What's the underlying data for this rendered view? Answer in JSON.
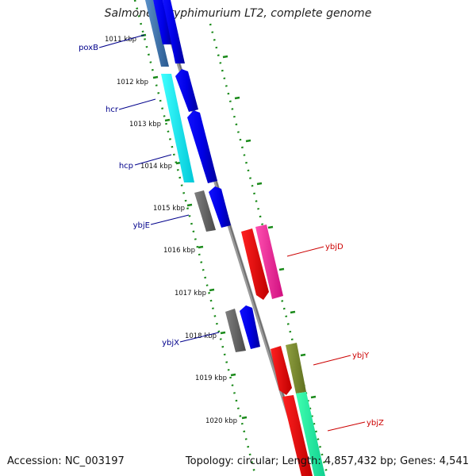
{
  "title": "Salmonella typhimurium LT2, complete genome",
  "accession_text": "Accession: NC_003197",
  "topology_text": "Topology: circular; Length: 4,857,432 bp; Genes: 4,541",
  "kbp_ticks": [
    "1011 kbp",
    "1012 kbp",
    "1013 kbp",
    "1014 kbp",
    "1015 kbp",
    "1016 kbp",
    "1017 kbp",
    "1018 kbp",
    "1019 kbp",
    "1020 kbp"
  ],
  "genes": [
    {
      "name": "poxB",
      "strand": "left",
      "color": "#00008b"
    },
    {
      "name": "hcr",
      "strand": "left",
      "color": "#00008b"
    },
    {
      "name": "hcp",
      "strand": "left",
      "color": "#00008b"
    },
    {
      "name": "ybjE",
      "strand": "left",
      "color": "#00008b"
    },
    {
      "name": "ybjX",
      "strand": "left",
      "color": "#00008b"
    },
    {
      "name": "ybjD",
      "strand": "right",
      "color": "#cc0000"
    },
    {
      "name": "ybjY",
      "strand": "right",
      "color": "#cc0000"
    },
    {
      "name": "ybjZ",
      "strand": "right",
      "color": "#cc0000"
    }
  ],
  "colors": {
    "forward_cds": "#0000ee",
    "reverse_cds": "#ee0000",
    "backbone": "#888888",
    "tick": "#1a8a1a",
    "left_label": "#00008b",
    "right_label": "#cc0000"
  }
}
